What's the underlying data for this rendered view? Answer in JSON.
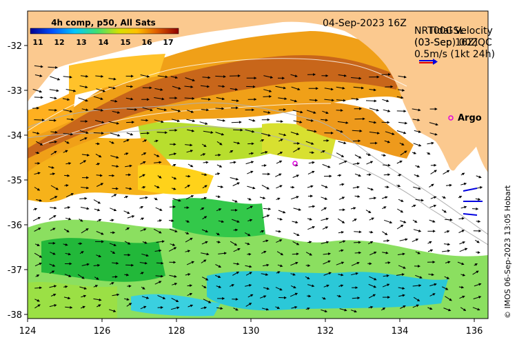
{
  "map": {
    "colorbar_title": "4h comp, p50, All Sats",
    "colorbar_ticks": [
      "11",
      "12",
      "13",
      "14",
      "15",
      "16",
      "17"
    ],
    "date_label": "04-Sep-2023 16Z",
    "velocity_title_lines": [
      "NRT00GSL",
      "(03-Sep) 00Z"
    ],
    "velocity_overlay_lines": [
      "Tidal Velocity",
      "(03-Sep 16Z)QC"
    ],
    "scale_label": "0.5m/s (1kt 24h)",
    "argo_label": "Argo",
    "credit": "© IMOS 06-Sep-2023 13:05 Hobart",
    "x_ticks": [
      "124",
      "126",
      "128",
      "130",
      "132",
      "134",
      "136"
    ],
    "y_ticks": [
      "-32",
      "-33",
      "-34",
      "-35",
      "-36",
      "-37",
      "-38"
    ],
    "colors": {
      "land": "#FBC98F",
      "ocean_nodata": "#FFFFFF",
      "arrow": "#000000",
      "argo": "#E000E0",
      "scale_red": "#E00000",
      "scale_blue": "#0000E0"
    }
  }
}
